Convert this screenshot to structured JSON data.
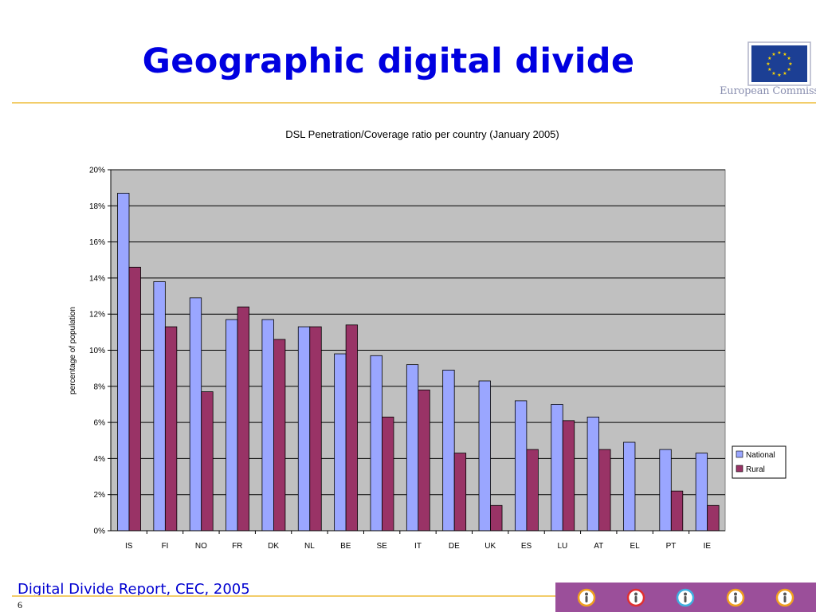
{
  "slide": {
    "title": "Geographic digital divide",
    "source": "Digital Divide Report, CEC, 2005",
    "page_number": "6",
    "org_name": "European Commission"
  },
  "footer_icons": [
    {
      "name": "walking-person-icon",
      "ring": "#f0a020"
    },
    {
      "name": "cyclist-icon",
      "ring": "#e03030"
    },
    {
      "name": "standing-person-icon",
      "ring": "#40b0e0"
    },
    {
      "name": "group-of-people-icon",
      "ring": "#f0a020"
    },
    {
      "name": "seated-person-icon",
      "ring": "#f0a020"
    }
  ],
  "colors": {
    "national": "#9aa6ff",
    "rural": "#993366",
    "plot_bg": "#c0c0c0",
    "title_blue": "#0000e0",
    "eu_blue": "#1c3f94",
    "eu_gold": "#ffd700"
  },
  "chart_data": {
    "type": "bar",
    "title": "DSL Penetration/Coverage ratio per country (January 2005)",
    "ylabel": "percentage of population",
    "xlabel": "",
    "ylim": [
      0,
      20
    ],
    "yticks": [
      0,
      2,
      4,
      6,
      8,
      10,
      12,
      14,
      16,
      18,
      20
    ],
    "ytick_labels": [
      "0%",
      "2%",
      "4%",
      "6%",
      "8%",
      "10%",
      "12%",
      "14%",
      "16%",
      "18%",
      "20%"
    ],
    "categories": [
      "IS",
      "FI",
      "NO",
      "FR",
      "DK",
      "NL",
      "BE",
      "SE",
      "IT",
      "DE",
      "UK",
      "ES",
      "LU",
      "AT",
      "EL",
      "PT",
      "IE"
    ],
    "series": [
      {
        "name": "National",
        "values": [
          18.7,
          13.8,
          12.9,
          11.7,
          11.7,
          11.3,
          9.8,
          9.7,
          9.2,
          8.9,
          8.3,
          7.2,
          7.0,
          6.3,
          4.9,
          4.5,
          4.3
        ]
      },
      {
        "name": "Rural",
        "values": [
          14.6,
          11.3,
          7.7,
          12.4,
          10.6,
          11.3,
          11.4,
          6.3,
          7.8,
          4.3,
          1.4,
          4.5,
          6.1,
          4.5,
          0,
          2.2,
          1.4
        ]
      }
    ],
    "grid": true,
    "legend_position": "right"
  }
}
